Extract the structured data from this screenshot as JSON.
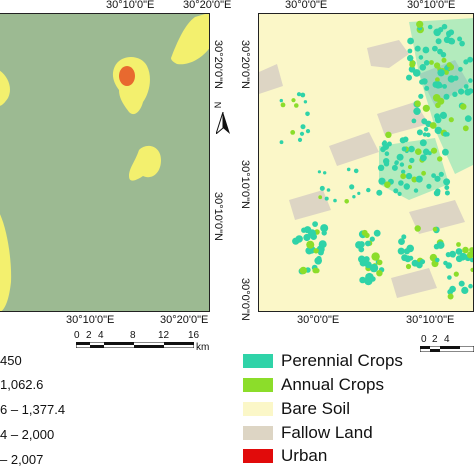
{
  "left_map": {
    "x_ticks": [
      "30°10'0\"E",
      "30°20'0\"E",
      "30°10'0\"E",
      "30°20'0\"E"
    ],
    "y_ticks": [
      "30°20'0\"N",
      "30°10'0\"N"
    ],
    "colors": {
      "background": "#9cba92",
      "yellow": "#f3f06e",
      "orange": "#e8692f"
    }
  },
  "right_map": {
    "x_ticks": [
      "30°0'0\"E",
      "30°10'0\"E",
      "30°0'0\"E",
      "30°10'0\"E"
    ],
    "y_ticks": [
      "30°20'0\"N",
      "30°10'0\"N",
      "30°0'0\"N"
    ],
    "colors": {
      "background": "#fbf7c8",
      "perennial": "#2fd3a8",
      "annual": "#8cdd2a",
      "fallow": "#ddd5c4"
    }
  },
  "north_arrow": {
    "label": "N"
  },
  "scalebar": {
    "labels": [
      "0",
      "2",
      "4",
      "8",
      "12",
      "16"
    ],
    "unit": "km"
  },
  "legend_left": [
    {
      "label": "450",
      "color": "#9cba92"
    },
    {
      "label": "1,062.6",
      "color": "#c9d88a"
    },
    {
      "label": "6 – 1,377.4",
      "color": "#f3f06e"
    },
    {
      "label": "4 – 2,000",
      "color": "#f1c35a"
    },
    {
      "label": "– 2,007",
      "color": "#e8692f"
    }
  ],
  "legend_right": [
    {
      "label": "Perennial Crops",
      "color": "#2fd3a8"
    },
    {
      "label": "Annual Crops",
      "color": "#8cdd2a"
    },
    {
      "label": "Bare Soil",
      "color": "#fbf7c8"
    },
    {
      "label": "Fallow Land",
      "color": "#ddd5c4"
    },
    {
      "label": "Urban",
      "color": "#e10b0b"
    }
  ]
}
